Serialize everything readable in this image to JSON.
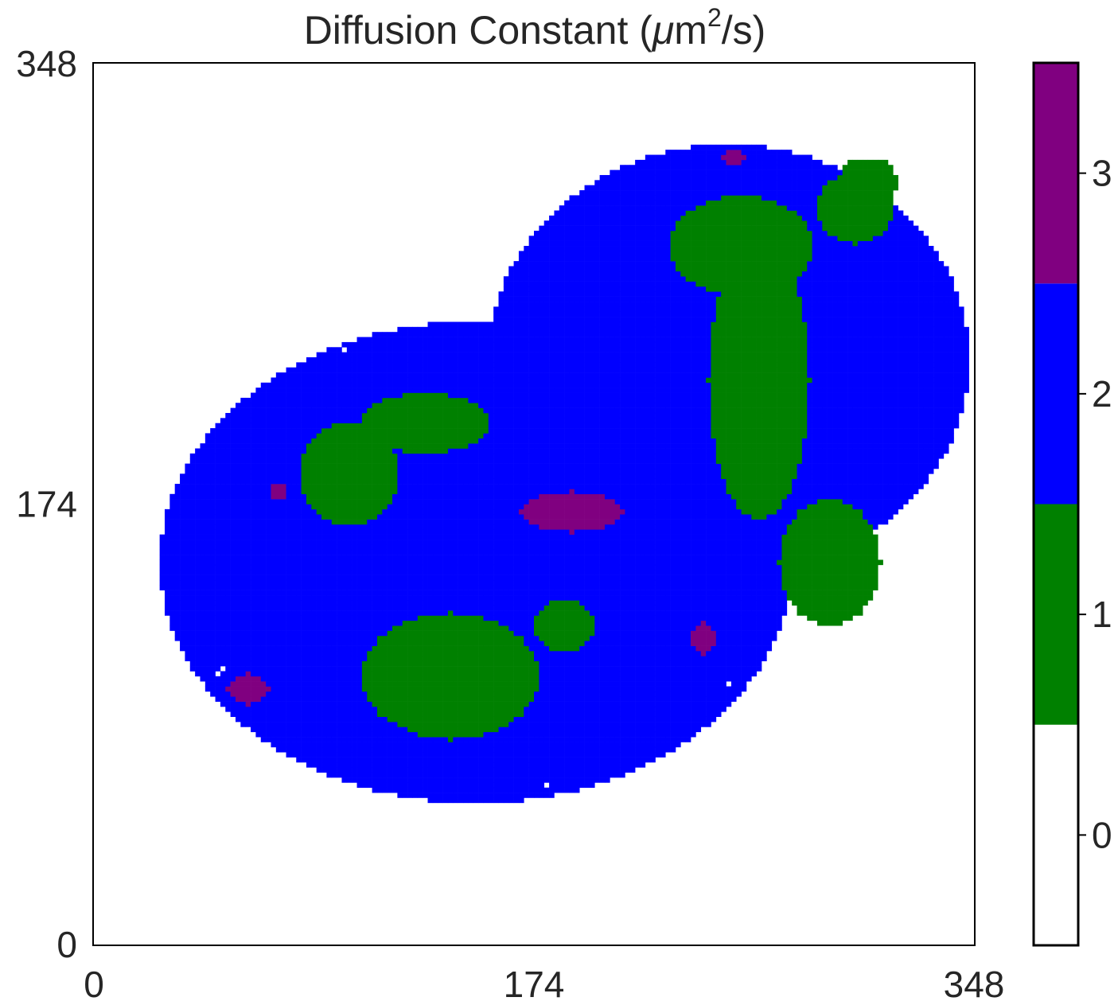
{
  "chart_data": {
    "type": "heatmap",
    "title": "Diffusion Constant (μm²/s)",
    "title_main": "Diffusion Constant (",
    "title_mu": "μ",
    "title_m": "m",
    "title_sup": "2",
    "title_tail": "/s)",
    "xlabel": "",
    "ylabel": "",
    "xlim": [
      0,
      348
    ],
    "ylim": [
      0,
      348
    ],
    "x_ticks": [
      0,
      174,
      348
    ],
    "y_ticks": [
      0,
      174,
      348
    ],
    "x_tick_labels": [
      "0",
      "174",
      "348"
    ],
    "y_tick_labels": [
      "0",
      "174",
      "348"
    ],
    "grid": false,
    "colorbar": {
      "levels": [
        0,
        1,
        2,
        3
      ],
      "tick_labels": [
        "0",
        "1",
        "2",
        "3"
      ],
      "colors": [
        "#ffffff",
        "#008000",
        "#0000ff",
        "#800080"
      ],
      "range": [
        -0.5,
        3.5
      ]
    },
    "cells_description_levels": {
      "0": "background / no data",
      "1": "green",
      "2": "blue",
      "3": "purple"
    },
    "regions": [
      {
        "level": 2,
        "cx": 250,
        "cy": 230,
        "rx": 95,
        "ry": 85,
        "density": 0.62
      },
      {
        "level": 2,
        "cx": 150,
        "cy": 150,
        "rx": 125,
        "ry": 95,
        "density": 0.38
      },
      {
        "level": 1,
        "cx": 262,
        "cy": 222,
        "rx": 20,
        "ry": 55,
        "density": 0.7
      },
      {
        "level": 1,
        "cx": 255,
        "cy": 275,
        "rx": 28,
        "ry": 20,
        "density": 0.55
      },
      {
        "level": 1,
        "cx": 300,
        "cy": 290,
        "rx": 15,
        "ry": 14,
        "density": 0.6
      },
      {
        "level": 1,
        "cx": 130,
        "cy": 205,
        "rx": 25,
        "ry": 12,
        "density": 0.5
      },
      {
        "level": 1,
        "cx": 100,
        "cy": 185,
        "rx": 20,
        "ry": 20,
        "density": 0.45
      },
      {
        "level": 1,
        "cx": 140,
        "cy": 105,
        "rx": 35,
        "ry": 25,
        "density": 0.35
      },
      {
        "level": 1,
        "cx": 185,
        "cy": 125,
        "rx": 12,
        "ry": 10,
        "density": 0.45
      },
      {
        "level": 1,
        "cx": 290,
        "cy": 150,
        "rx": 20,
        "ry": 25,
        "density": 0.45
      },
      {
        "level": 1,
        "cx": 305,
        "cy": 300,
        "rx": 12,
        "ry": 10,
        "density": 0.55
      },
      {
        "level": 3,
        "cx": 188,
        "cy": 170,
        "rx": 20,
        "ry": 8,
        "density": 0.35
      },
      {
        "level": 3,
        "cx": 60,
        "cy": 100,
        "rx": 8,
        "ry": 6,
        "density": 0.5
      },
      {
        "level": 3,
        "cx": 252,
        "cy": 310,
        "rx": 5,
        "ry": 3,
        "density": 0.6
      },
      {
        "level": 3,
        "cx": 72,
        "cy": 178,
        "rx": 3,
        "ry": 3,
        "density": 0.6
      },
      {
        "level": 3,
        "cx": 240,
        "cy": 120,
        "rx": 5,
        "ry": 6,
        "density": 0.35
      }
    ],
    "cell_size": 2
  }
}
